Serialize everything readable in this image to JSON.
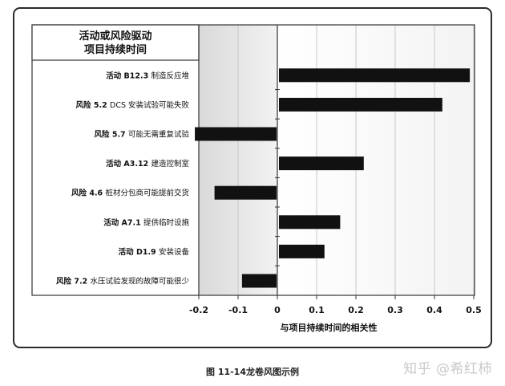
{
  "chart_data": {
    "type": "bar",
    "orientation": "horizontal",
    "title": "活动或风险驱动\n项目持续时间",
    "xlabel": "与项目持续时间的相关性",
    "xlim": [
      -0.2,
      0.5
    ],
    "xticks": [
      "-0.2",
      "-0.1",
      "0",
      "0.1",
      "0.2",
      "0.3",
      "0.4",
      "0.5"
    ],
    "categories": [
      {
        "bold": "活动 B12.3",
        "text": "制造反应堆"
      },
      {
        "bold": "风险 5.2",
        "text": "DCS 安装试验可能失败"
      },
      {
        "bold": "风险 5.7",
        "text": "可能无需重复试验"
      },
      {
        "bold": "活动 A3.12",
        "text": "建造控制室"
      },
      {
        "bold": "风险 4.6",
        "text": "桩材分包商可能提前交货"
      },
      {
        "bold": "活动 A7.1",
        "text": "提供临时设施"
      },
      {
        "bold": "活动 D1.9",
        "text": "安装设备"
      },
      {
        "bold": "风险 7.2",
        "text": "水压试验发现的故障可能很少"
      }
    ],
    "values": [
      0.49,
      0.42,
      -0.21,
      0.22,
      -0.16,
      0.16,
      0.12,
      -0.09
    ],
    "bar_color": "#111111",
    "grid": true
  },
  "caption": "图 11-14龙卷风图示例",
  "watermark": "知乎 @希红柿"
}
